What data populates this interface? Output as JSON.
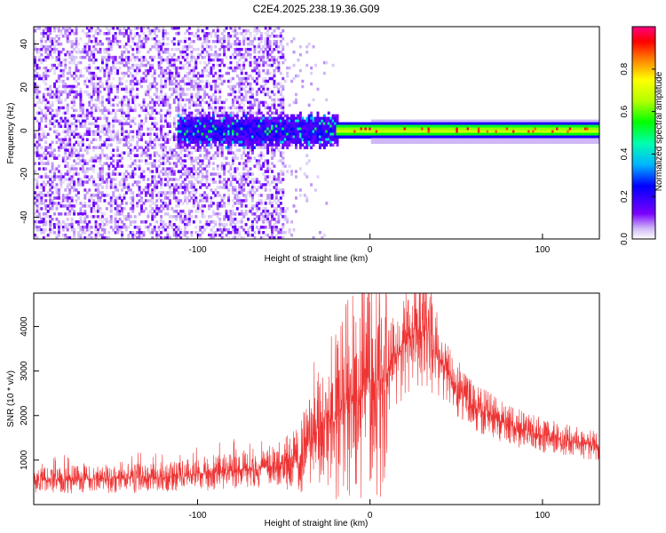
{
  "title": "C2E4.2025.238.19.36.G09",
  "chart_data": [
    {
      "type": "heatmap",
      "xlabel": "Height of straight line (km)",
      "ylabel": "Frequency (Hz)",
      "xlim": [
        -195,
        133
      ],
      "ylim": [
        -50,
        48
      ],
      "xticks": [
        -100,
        0,
        100
      ],
      "xtick_labels": [
        "-100",
        "0",
        "100"
      ],
      "yticks": [
        -40,
        -20,
        0,
        20,
        40
      ],
      "ytick_labels": [
        "-40",
        "-20",
        "0",
        "20",
        "40"
      ],
      "colorbar": {
        "label": "Normalized spectral amplitude",
        "range": [
          0,
          1
        ],
        "ticks": [
          0.0,
          0.2,
          0.4,
          0.6,
          0.8
        ],
        "tick_labels": [
          "0.0",
          "0.2",
          "0.4",
          "0.6",
          "0.8"
        ],
        "colormap": "hsv-rainbow (white - violet - blue - cyan - green - yellow - red - magenta)"
      },
      "regions": [
        {
          "description": "noise",
          "x_range": [
            -195,
            -50
          ],
          "freq_range": [
            -50,
            48
          ],
          "amplitude": [
            0.0,
            0.15
          ]
        },
        {
          "description": "sparse noise",
          "x_range": [
            -50,
            -20
          ],
          "freq_range": [
            -50,
            48
          ],
          "amplitude": [
            0.0,
            0.05
          ]
        },
        {
          "description": "signal band onset",
          "x_range": [
            -110,
            -20
          ],
          "freq_range": [
            -10,
            10
          ],
          "amplitude": [
            0.15,
            0.5
          ]
        },
        {
          "description": "narrow carrier line",
          "x_range": [
            -20,
            133
          ],
          "freq_range": [
            -3,
            3
          ],
          "amplitude": [
            0.5,
            0.95
          ]
        }
      ]
    },
    {
      "type": "line",
      "xlabel": "Height of straight line (km)",
      "ylabel": "SNR (10 * v/v)",
      "xlim": [
        -195,
        133
      ],
      "ylim": [
        0,
        4750
      ],
      "xticks": [
        -100,
        0,
        100
      ],
      "xtick_labels": [
        "-100",
        "0",
        "100"
      ],
      "yticks": [
        1000,
        2000,
        3000,
        4000
      ],
      "ytick_labels": [
        "1000",
        "2000",
        "3000",
        "4000"
      ],
      "color": "#ee3333",
      "series": [
        {
          "name": "SNR",
          "envelope_x": [
            -195,
            -150,
            -120,
            -100,
            -80,
            -60,
            -50,
            -40,
            -35,
            -30,
            -25,
            -20,
            -15,
            -10,
            -5,
            0,
            5,
            10,
            15,
            20,
            25,
            30,
            35,
            40,
            50,
            60,
            80,
            100,
            120,
            133
          ],
          "envelope_y": [
            550,
            580,
            620,
            680,
            760,
            850,
            950,
            1100,
            1400,
            1700,
            2000,
            1850,
            2300,
            2450,
            2650,
            2800,
            2750,
            2950,
            3350,
            3650,
            3850,
            4050,
            3900,
            3300,
            2650,
            2200,
            1800,
            1550,
            1400,
            1300
          ]
        }
      ]
    }
  ]
}
